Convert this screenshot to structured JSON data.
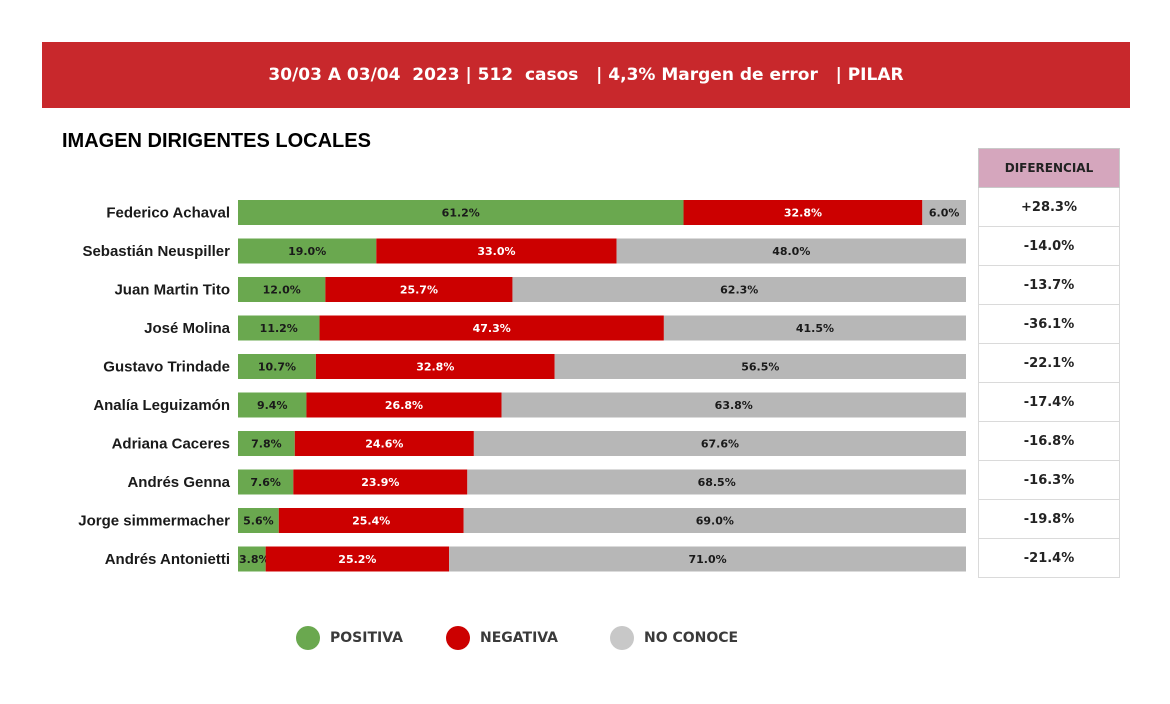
{
  "header": {
    "text": "30/03 A 03/04  2023 | 512  casos   | 4,3% Margen de error   | PILAR"
  },
  "chart_data": {
    "type": "bar",
    "stacked": true,
    "orientation": "horizontal",
    "title": "IMAGEN DIRIGENTES LOCALES",
    "categories": [
      "Federico Achaval",
      "Sebastián Neuspiller",
      "Juan Martin Tito",
      "José Molina",
      "Gustavo Trindade",
      "Analía Leguizamón",
      "Adriana Caceres",
      "Andrés Genna",
      "Jorge simmermacher",
      "Andrés Antonietti"
    ],
    "series": [
      {
        "name": "POSITIVA",
        "color": "#6aa84f",
        "values": [
          61.2,
          19.0,
          12.0,
          11.2,
          10.7,
          9.4,
          7.8,
          7.6,
          5.6,
          3.8
        ],
        "labels": [
          "61.2%",
          "19.0%",
          "12.0%",
          "11.2%",
          "10.7%",
          "9.4%",
          "7.8%",
          "7.6%",
          "5.6%",
          "3.8%"
        ]
      },
      {
        "name": "NEGATIVA",
        "color": "#cc0000",
        "values": [
          32.8,
          33.0,
          25.7,
          47.3,
          32.8,
          26.8,
          24.6,
          23.9,
          25.4,
          25.2
        ],
        "labels": [
          "32.8%",
          "33.0%",
          "25.7%",
          "47.3%",
          "32.8%",
          "26.8%",
          "24.6%",
          "23.9%",
          "25.4%",
          "25.2%"
        ]
      },
      {
        "name": "NO CONOCE",
        "color": "#b7b7b7",
        "values": [
          6.0,
          48.0,
          62.3,
          41.5,
          56.5,
          63.8,
          67.6,
          68.5,
          69.0,
          71.0
        ],
        "labels": [
          "6.0%",
          "48.0%",
          "62.3%",
          "41.5%",
          "56.5%",
          "63.8%",
          "67.6%",
          "68.5%",
          "69.0%",
          "71.0%"
        ]
      }
    ],
    "xlim": [
      0,
      100
    ]
  },
  "diferencial": {
    "header": "DIFERENCIAL",
    "values": [
      "+28.3%",
      "-14.0%",
      "-13.7%",
      "-36.1%",
      "-22.1%",
      "-17.4%",
      "-16.8%",
      "-16.3%",
      "-19.8%",
      "-21.4%"
    ]
  },
  "legend": {
    "items": [
      {
        "label": "POSITIVA",
        "color": "#6aa84f"
      },
      {
        "label": "NEGATIVA",
        "color": "#cc0000"
      },
      {
        "label": "NO CONOCE",
        "color": "#c8c8c8"
      }
    ]
  }
}
